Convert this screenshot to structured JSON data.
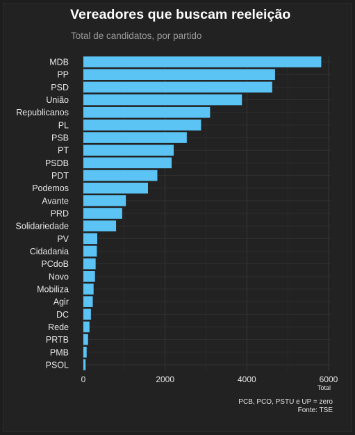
{
  "header": {
    "title": "Vereadores que buscam reeleição",
    "subtitle": "Total de candidatos, por partido"
  },
  "colors": {
    "background": "#222222",
    "bar": "#5bc4f5",
    "grid": "#333333",
    "text": "#e6e6e6"
  },
  "chart_data": {
    "type": "bar",
    "orientation": "horizontal",
    "title": "Vereadores que buscam reeleição",
    "subtitle": "Total de candidatos, por partido",
    "xlabel": "Total",
    "ylabel": "",
    "xlim": [
      0,
      6000
    ],
    "xticks": [
      0,
      2000,
      4000,
      6000
    ],
    "grid": true,
    "categories": [
      "MDB",
      "PP",
      "PSD",
      "União",
      "Republicanos",
      "PL",
      "PSB",
      "PT",
      "PSDB",
      "PDT",
      "Podemos",
      "Avante",
      "PRD",
      "Solidariedade",
      "PV",
      "Cidadania",
      "PCdoB",
      "Novo",
      "Mobiliza",
      "Agir",
      "DC",
      "Rede",
      "PRTB",
      "PMB",
      "PSOL"
    ],
    "values": [
      5820,
      4690,
      4620,
      3880,
      3100,
      2880,
      2530,
      2210,
      2160,
      1810,
      1580,
      1040,
      950,
      800,
      340,
      330,
      300,
      285,
      250,
      230,
      185,
      150,
      115,
      80,
      55
    ]
  },
  "footer": {
    "note": "PCB, PCO, PSTU e UP = zero",
    "source": "Fonte: TSE"
  }
}
